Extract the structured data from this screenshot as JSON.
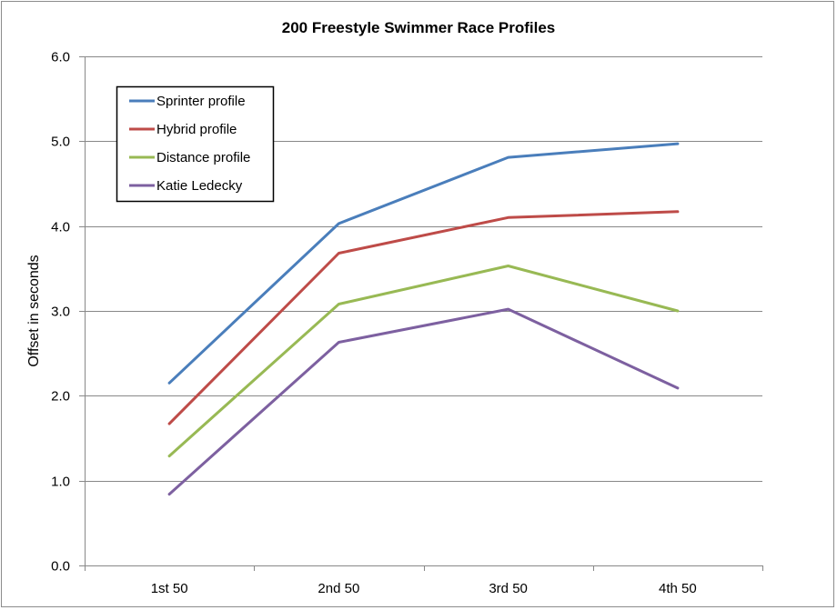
{
  "chart_data": {
    "type": "line",
    "title": "200 Freestyle Swimmer Race Profiles",
    "xlabel": "",
    "ylabel": "Offset in seconds",
    "categories": [
      "1st 50",
      "2nd 50",
      "3rd 50",
      "4th 50"
    ],
    "ylim": [
      0,
      6
    ],
    "yticks": [
      "0.0",
      "1.0",
      "2.0",
      "3.0",
      "4.0",
      "5.0",
      "6.0"
    ],
    "grid": true,
    "legend_position": "top-left",
    "series": [
      {
        "name": "Sprinter profile",
        "color": "#4a7ebb",
        "values": [
          2.15,
          4.03,
          4.81,
          4.97
        ]
      },
      {
        "name": "Hybrid profile",
        "color": "#be4b48",
        "values": [
          1.67,
          3.68,
          4.1,
          4.17
        ]
      },
      {
        "name": "Distance profile",
        "color": "#98b954",
        "values": [
          1.29,
          3.08,
          3.53,
          3.0
        ]
      },
      {
        "name": "Katie Ledecky",
        "color": "#7d60a0",
        "values": [
          0.84,
          2.63,
          3.02,
          2.09
        ]
      }
    ]
  }
}
